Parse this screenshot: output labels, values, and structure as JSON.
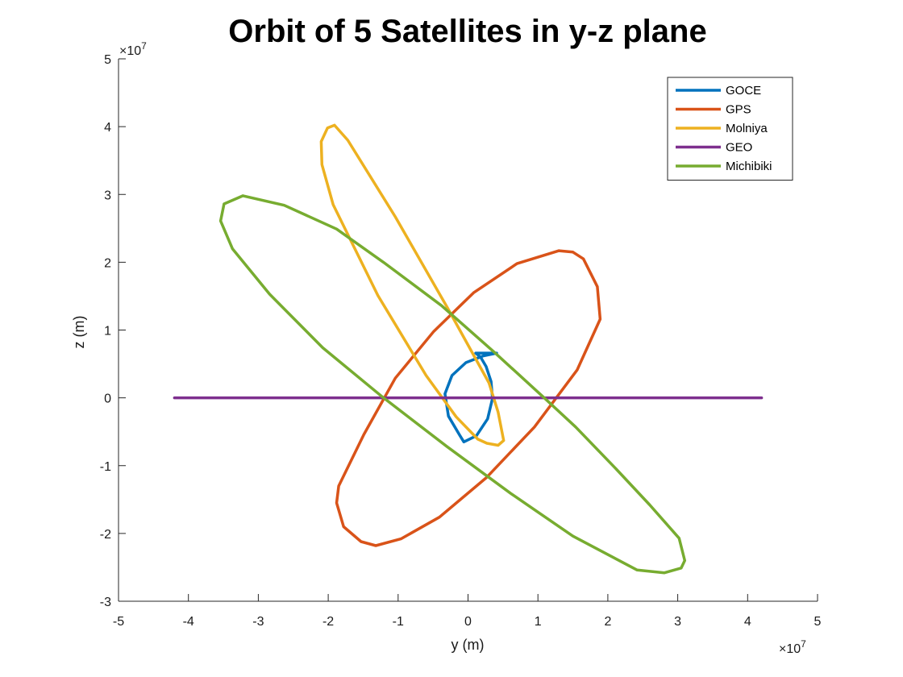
{
  "chart_data": {
    "type": "line",
    "title": "Orbit of 5 Satellites in y-z plane",
    "xlabel": "y (m)",
    "ylabel": "z (m)",
    "x_exponent_label": "×10",
    "x_exponent_power": "7",
    "y_exponent_label": "×10",
    "y_exponent_power": "7",
    "xlim": [
      -5,
      5
    ],
    "ylim": [
      -3,
      5
    ],
    "xticks": [
      "-5",
      "-4",
      "-3",
      "-2",
      "-1",
      "0",
      "1",
      "2",
      "3",
      "4",
      "5"
    ],
    "yticks": [
      "-3",
      "-2",
      "-1",
      "0",
      "1",
      "2",
      "3",
      "4",
      "5"
    ],
    "grid": false,
    "legend_position": "top-right",
    "series": [
      {
        "name": "GOCE",
        "color": "#0072BD",
        "points": [
          [
            0.41,
            0.66
          ],
          [
            0.22,
            0.62
          ],
          [
            -0.03,
            0.52
          ],
          [
            -0.23,
            0.33
          ],
          [
            -0.33,
            0.06
          ],
          [
            -0.28,
            -0.27
          ],
          [
            -0.12,
            -0.55
          ],
          [
            -0.06,
            -0.65
          ],
          [
            0.12,
            -0.56
          ],
          [
            0.28,
            -0.31
          ],
          [
            0.35,
            -0.01
          ],
          [
            0.33,
            0.24
          ],
          [
            0.26,
            0.46
          ],
          [
            0.18,
            0.6
          ],
          [
            0.11,
            0.66
          ],
          [
            0.41,
            0.66
          ]
        ]
      },
      {
        "name": "GPS",
        "color": "#D95319",
        "points": [
          [
            1.3,
            2.17
          ],
          [
            0.7,
            1.98
          ],
          [
            0.08,
            1.55
          ],
          [
            -0.49,
            0.98
          ],
          [
            -1.04,
            0.29
          ],
          [
            -1.49,
            -0.54
          ],
          [
            -1.85,
            -1.3
          ],
          [
            -1.88,
            -1.55
          ],
          [
            -1.78,
            -1.9
          ],
          [
            -1.53,
            -2.12
          ],
          [
            -1.32,
            -2.18
          ],
          [
            -0.96,
            -2.08
          ],
          [
            -0.41,
            -1.76
          ],
          [
            0.26,
            -1.18
          ],
          [
            0.95,
            -0.43
          ],
          [
            1.56,
            0.41
          ],
          [
            1.89,
            1.16
          ],
          [
            1.85,
            1.64
          ],
          [
            1.65,
            2.05
          ],
          [
            1.5,
            2.15
          ],
          [
            1.3,
            2.17
          ]
        ]
      },
      {
        "name": "Molniya",
        "color": "#EDB120",
        "points": [
          [
            -1.91,
            4.02
          ],
          [
            -1.72,
            3.8
          ],
          [
            -1.04,
            2.67
          ],
          [
            -0.29,
            1.32
          ],
          [
            0.3,
            0.22
          ],
          [
            0.43,
            -0.21
          ],
          [
            0.51,
            -0.63
          ],
          [
            0.43,
            -0.7
          ],
          [
            0.27,
            -0.67
          ],
          [
            0.14,
            -0.61
          ],
          [
            -0.17,
            -0.28
          ],
          [
            -0.6,
            0.33
          ],
          [
            -1.29,
            1.51
          ],
          [
            -1.93,
            2.85
          ],
          [
            -2.09,
            3.44
          ],
          [
            -2.1,
            3.78
          ],
          [
            -2.01,
            3.98
          ],
          [
            -1.91,
            4.02
          ]
        ]
      },
      {
        "name": "GEO",
        "color": "#7E2F8E",
        "points": [
          [
            -4.2,
            0
          ],
          [
            4.2,
            0
          ]
        ]
      },
      {
        "name": "Michibiki",
        "color": "#77AC30",
        "points": [
          [
            -3.22,
            2.98
          ],
          [
            -2.63,
            2.84
          ],
          [
            -1.88,
            2.49
          ],
          [
            -1.21,
            2.0
          ],
          [
            -0.38,
            1.36
          ],
          [
            0.38,
            0.67
          ],
          [
            1.08,
            0.01
          ],
          [
            1.54,
            -0.43
          ],
          [
            2.12,
            -1.05
          ],
          [
            2.6,
            -1.58
          ],
          [
            3.02,
            -2.07
          ],
          [
            3.1,
            -2.4
          ],
          [
            3.05,
            -2.51
          ],
          [
            2.81,
            -2.58
          ],
          [
            2.42,
            -2.54
          ],
          [
            1.5,
            -2.04
          ],
          [
            0.61,
            -1.41
          ],
          [
            -0.3,
            -0.72
          ],
          [
            -1.22,
            0.01
          ],
          [
            -2.08,
            0.74
          ],
          [
            -2.84,
            1.53
          ],
          [
            -3.37,
            2.2
          ],
          [
            -3.54,
            2.61
          ],
          [
            -3.49,
            2.86
          ],
          [
            -3.22,
            2.98
          ]
        ]
      }
    ]
  }
}
